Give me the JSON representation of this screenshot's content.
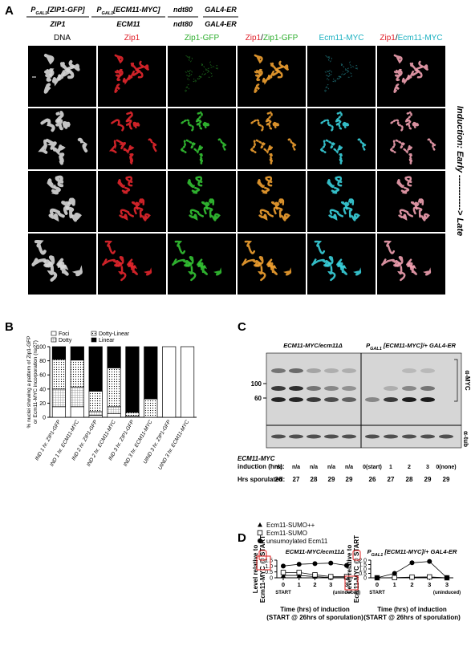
{
  "panel_a": {
    "label": "A",
    "genotypes": [
      {
        "top": {
          "p": "P",
          "sub": "GAL1",
          "rest": "[ZIP1-GFP]"
        },
        "bottom": "ZIP1"
      },
      {
        "top": {
          "p": "P",
          "sub": "GAL1",
          "rest": "[ECM11-MYC]"
        },
        "bottom": "ECM11"
      },
      {
        "top": "ndt80",
        "bottom": "ndt80"
      },
      {
        "top": "GAL4-ER",
        "bottom": "GAL4-ER"
      }
    ],
    "columns": [
      [
        {
          "text": "DNA",
          "color": "#000000"
        }
      ],
      [
        {
          "text": "Zip1",
          "color": "#e0202a"
        }
      ],
      [
        {
          "text": "Zip1-GFP",
          "color": "#2eae2e"
        }
      ],
      [
        {
          "text": "Zip1",
          "color": "#e0202a"
        },
        {
          "text": "/",
          "color": "#000000"
        },
        {
          "text": "Zip1-GFP",
          "color": "#2eae2e"
        }
      ],
      [
        {
          "text": "Ecm11-MYC",
          "color": "#1ab0c0"
        }
      ],
      [
        {
          "text": "Zip1",
          "color": "#e0202a"
        },
        {
          "text": "/",
          "color": "#000000"
        },
        {
          "text": "Ecm11-MYC",
          "color": "#1ab0c0"
        }
      ]
    ],
    "stage_label": "Induction: Early ------------> Late"
  },
  "panel_b": {
    "label": "B"
  },
  "panel_c": {
    "label": "C",
    "groups": [
      "ECM11-MYC/ecm11Δ",
      {
        "p": "P",
        "sub": "GAL1",
        "rest": " [ECM11-MYC]/+ GAL4-ER"
      }
    ],
    "mw_markers": [
      100,
      60
    ],
    "antibodies": [
      "α-MYC",
      "α-tub"
    ],
    "genotype_label": "ECM11-MYC",
    "induction_label": "induction (hrs):",
    "sporulated_label": "Hrs sporulated:",
    "induction": [
      "n/a",
      "n/a",
      "n/a",
      "n/a",
      "n/a",
      "0(start)",
      "1",
      "2",
      "3",
      "0(none)"
    ],
    "hrs_sporulated": [
      26,
      27,
      28,
      29,
      29,
      26,
      27,
      28,
      29,
      29
    ]
  },
  "panel_d": {
    "label": "D"
  },
  "chart_data": [
    {
      "type": "bar",
      "stacked": true,
      "y_label": [
        "% nuclei showing a pattern of Zip1-GFP",
        "or Ecm11-MYC incorporation (n≥27)"
      ],
      "categories": [
        "IND 1 hr. ZIP1-GFP",
        "IND 1 hr. ECM11-MYC",
        "IND 2 hr. ZIP1-GFP",
        "IND 2 hr. ECM11-MYC",
        "IND 3 hr. ZIP1-GFP",
        "IND 3 hr. ECM11-MYC",
        "UIND 3 hr. ZIP1-GFP",
        "UIND 3 hr. ECM11-MYC"
      ],
      "series": [
        {
          "name": "Foci",
          "pattern": "none",
          "values": [
            15,
            15,
            3,
            5,
            0,
            0,
            100,
            100
          ]
        },
        {
          "name": "Dotty",
          "pattern": "grid",
          "values": [
            25,
            28,
            5,
            10,
            2,
            0,
            0,
            0
          ]
        },
        {
          "name": "Dotty-Linear",
          "pattern": "dots",
          "values": [
            42,
            38,
            29,
            55,
            5,
            26,
            0,
            0
          ]
        },
        {
          "name": "Linear",
          "pattern": "solid",
          "values": [
            18,
            19,
            63,
            30,
            93,
            74,
            0,
            0
          ]
        }
      ],
      "ylim": [
        0,
        100
      ],
      "yticks": [
        0,
        20,
        40,
        60,
        80,
        100
      ]
    },
    {
      "type": "line",
      "title": "ECM11-MYC/ecm11Δ",
      "y_label": [
        "Level relative to",
        "Ecm11-MYC @ START"
      ],
      "x_label": [
        "Time (hrs) of induction",
        "(START @ 26hrs of sporulation)"
      ],
      "categories": [
        "0",
        "1",
        "2",
        "3",
        "3"
      ],
      "start_label": "START",
      "uninduced_label": "(uninduced)",
      "series": [
        {
          "name": "Ecm11-SUMO++",
          "marker": "triangle",
          "values": [
            0.2,
            0.2,
            0.1,
            0.02,
            0.02
          ]
        },
        {
          "name": "Ecm11-SUMO",
          "marker": "square",
          "values": [
            0.45,
            0.45,
            0.25,
            0.1,
            0.1
          ]
        },
        {
          "name": "unsumoylated Ecm11",
          "marker": "circle",
          "values": [
            1.0,
            1.15,
            1.2,
            1.25,
            1.05
          ]
        }
      ],
      "ylim": [
        0,
        1.5
      ],
      "yticks": [
        0,
        0.5,
        {
          "value": 1,
          "label": "1.0"
        },
        1.5
      ]
    },
    {
      "type": "line",
      "title": {
        "p": "P",
        "sub": "GAL1",
        "rest": " [ECM11-MYC]/+ GAL4-ER"
      },
      "y_label": [
        "Level relative to",
        "Ecm11-MYC @ START"
      ],
      "x_label": [
        "Time (hrs) of induction",
        "(START @ 26hrs of sporulation)"
      ],
      "categories": [
        "0",
        "1",
        "2",
        "3",
        "3"
      ],
      "start_label": "START",
      "uninduced_label": "(uninduced)",
      "series": [
        {
          "marker": "triangle",
          "values": [
            0,
            0,
            0.05,
            0.05,
            0
          ]
        },
        {
          "marker": "square",
          "values": [
            0,
            0.02,
            0.08,
            0.1,
            0
          ]
        },
        {
          "marker": "circle",
          "values": [
            0,
            0.5,
            1.7,
            1.85,
            0
          ]
        }
      ],
      "ylim": [
        0,
        2
      ],
      "yticks": [
        0,
        0.5,
        {
          "value": 1,
          "label": "1.0"
        },
        1.5,
        {
          "value": 2,
          "label": "2.0"
        }
      ]
    }
  ]
}
